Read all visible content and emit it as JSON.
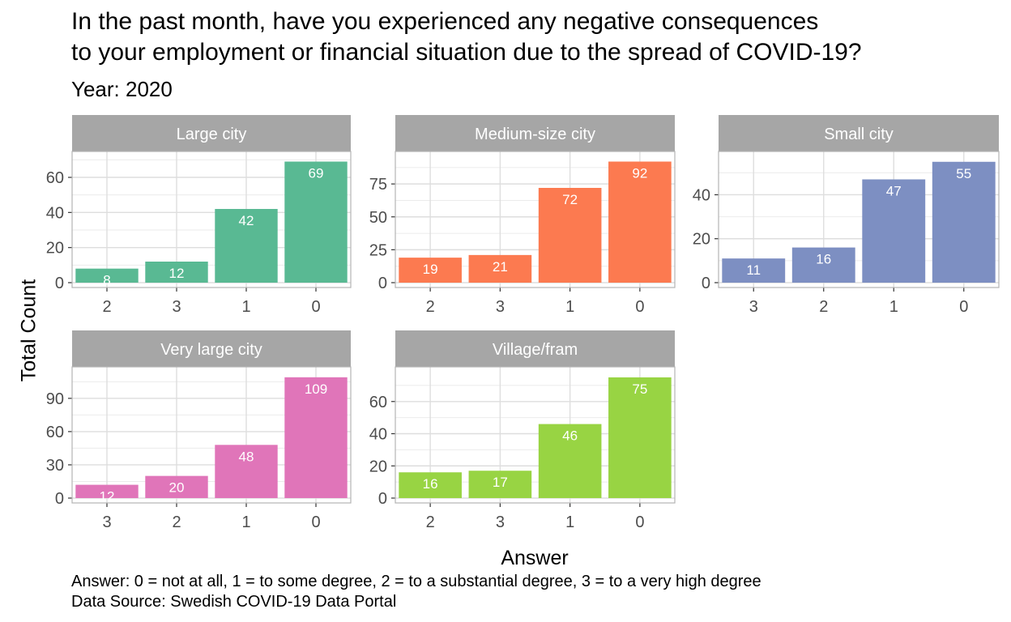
{
  "title_line1": "In the past month, have you experienced any negative consequences",
  "title_line2": "to your employment or financial situation due to the spread of COVID-19?",
  "subtitle": "Year: 2020",
  "caption_line1": "Answer: 0 = not at all, 1 = to some degree, 2 = to a substantial degree, 3 = to a very high degree",
  "caption_line2": "Data Source: Swedish COVID-19 Data Portal",
  "chart_data": {
    "type": "bar",
    "xlabel": "Answer",
    "ylabel": "Total Count",
    "grid": true,
    "panels": [
      {
        "name": "Large city",
        "color": "#59B993",
        "categories": [
          "2",
          "3",
          "1",
          "0"
        ],
        "values": [
          8,
          12,
          42,
          69
        ],
        "yticks": [
          0,
          20,
          40,
          60
        ],
        "ylim": [
          0,
          72
        ]
      },
      {
        "name": "Medium-size city",
        "color": "#FC7A50",
        "categories": [
          "2",
          "3",
          "1",
          "0"
        ],
        "values": [
          19,
          21,
          72,
          92
        ],
        "yticks": [
          0,
          25,
          50,
          75
        ],
        "ylim": [
          0,
          96
        ]
      },
      {
        "name": "Small city",
        "color": "#7D8FC2",
        "categories": [
          "3",
          "2",
          "1",
          "0"
        ],
        "values": [
          11,
          16,
          47,
          55
        ],
        "yticks": [
          0,
          20,
          40
        ],
        "ylim": [
          0,
          57.5
        ]
      },
      {
        "name": "Very large city",
        "color": "#E075B9",
        "categories": [
          "3",
          "2",
          "1",
          "0"
        ],
        "values": [
          12,
          20,
          48,
          109
        ],
        "yticks": [
          0,
          30,
          60,
          90
        ],
        "ylim": [
          0,
          114
        ]
      },
      {
        "name": "Village/fram",
        "color": "#98D443",
        "categories": [
          "2",
          "3",
          "1",
          "0"
        ],
        "values": [
          16,
          17,
          46,
          75
        ],
        "yticks": [
          0,
          20,
          40,
          60
        ],
        "ylim": [
          0,
          78.5
        ]
      }
    ]
  }
}
